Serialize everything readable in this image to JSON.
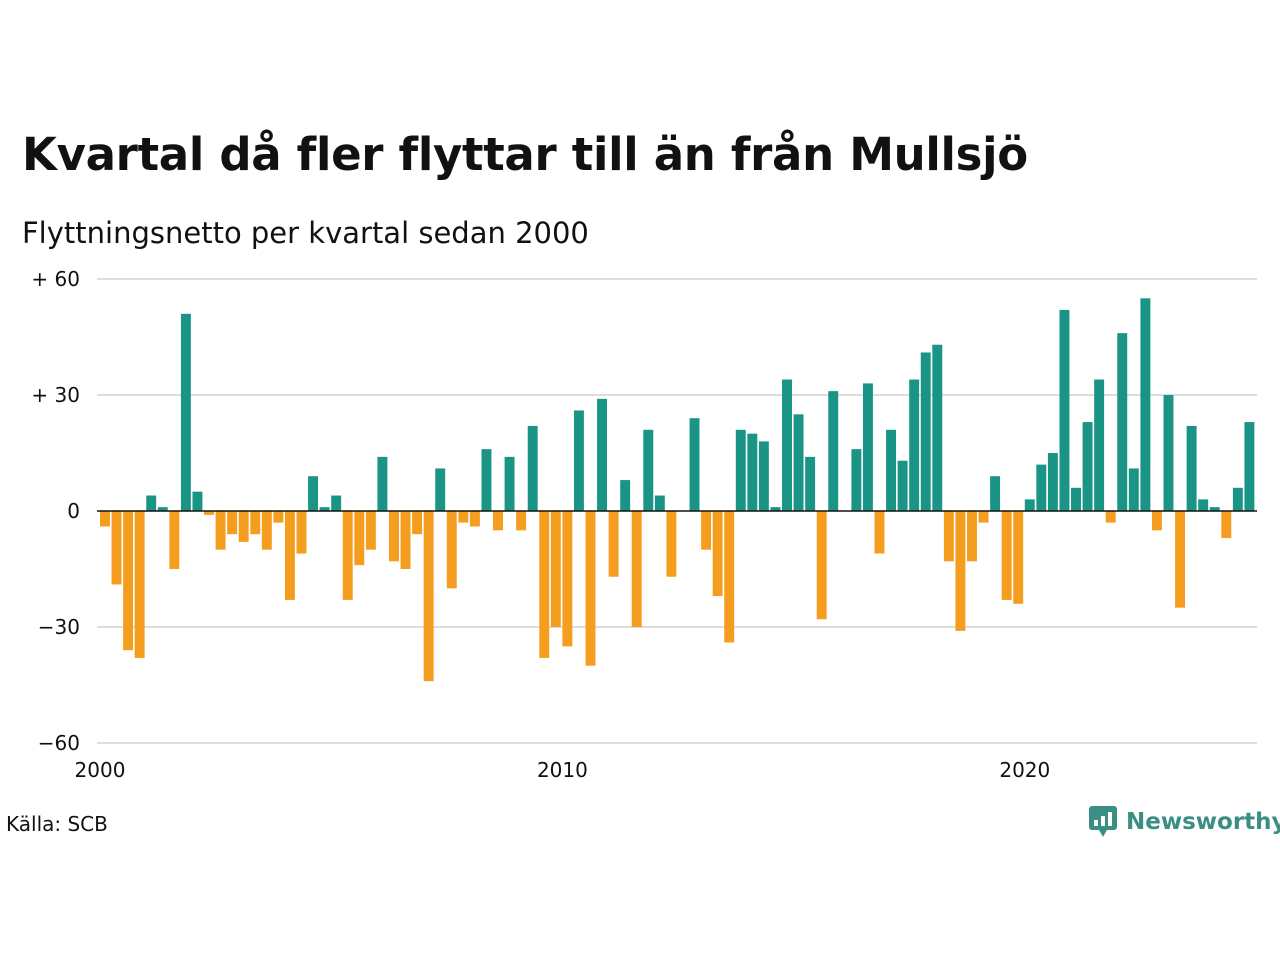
{
  "title": "Kvartal då fler flyttar till än från Mullsjö",
  "subtitle": "Flyttningsnetto per kvartal sedan 2000",
  "source": "Källa: SCB",
  "brand": {
    "name": "Newsworthy",
    "icon": "newsworthy-logo-icon"
  },
  "colors": {
    "positive": "#1a9485",
    "negative": "#f59d1e",
    "grid": "#dddddd",
    "zero_line": "#111111",
    "brand": "#3a8f84"
  },
  "chart_data": {
    "type": "bar",
    "title": "Kvartal då fler flyttar till än från Mullsjö",
    "subtitle": "Flyttningsnetto per kvartal sedan 2000",
    "xlabel": "",
    "ylabel": "",
    "ylim": [
      -60,
      60
    ],
    "grid": true,
    "legend": "none",
    "y_ticks": [
      {
        "value": 60,
        "label": "+ 60"
      },
      {
        "value": 30,
        "label": "+ 30"
      },
      {
        "value": 0,
        "label": "0"
      },
      {
        "value": -30,
        "label": "−30"
      },
      {
        "value": -60,
        "label": "−60"
      }
    ],
    "x_ticks": [
      {
        "year": 2000,
        "label": "2000"
      },
      {
        "year": 2010,
        "label": "2010"
      },
      {
        "year": 2020,
        "label": "2020"
      }
    ],
    "categories": [
      "2000 Q1",
      "2000 Q2",
      "2000 Q3",
      "2000 Q4",
      "2001 Q1",
      "2001 Q2",
      "2001 Q3",
      "2001 Q4",
      "2002 Q1",
      "2002 Q2",
      "2002 Q3",
      "2002 Q4",
      "2003 Q1",
      "2003 Q2",
      "2003 Q3",
      "2003 Q4",
      "2004 Q1",
      "2004 Q2",
      "2004 Q3",
      "2004 Q4",
      "2005 Q1",
      "2005 Q2",
      "2005 Q3",
      "2005 Q4",
      "2006 Q1",
      "2006 Q2",
      "2006 Q3",
      "2006 Q4",
      "2007 Q1",
      "2007 Q2",
      "2007 Q3",
      "2007 Q4",
      "2008 Q1",
      "2008 Q2",
      "2008 Q3",
      "2008 Q4",
      "2009 Q1",
      "2009 Q2",
      "2009 Q3",
      "2009 Q4",
      "2010 Q1",
      "2010 Q2",
      "2010 Q3",
      "2010 Q4",
      "2011 Q1",
      "2011 Q2",
      "2011 Q3",
      "2011 Q4",
      "2012 Q1",
      "2012 Q2",
      "2012 Q3",
      "2012 Q4",
      "2013 Q1",
      "2013 Q2",
      "2013 Q3",
      "2013 Q4",
      "2014 Q1",
      "2014 Q2",
      "2014 Q3",
      "2014 Q4",
      "2015 Q1",
      "2015 Q2",
      "2015 Q3",
      "2015 Q4",
      "2016 Q1",
      "2016 Q2",
      "2016 Q3",
      "2016 Q4",
      "2017 Q1",
      "2017 Q2",
      "2017 Q3",
      "2017 Q4",
      "2018 Q1",
      "2018 Q2",
      "2018 Q3",
      "2018 Q4",
      "2019 Q1",
      "2019 Q2",
      "2019 Q3",
      "2019 Q4",
      "2020 Q1",
      "2020 Q2",
      "2020 Q3",
      "2020 Q4",
      "2021 Q1",
      "2021 Q2",
      "2021 Q3",
      "2021 Q4",
      "2022 Q1",
      "2022 Q2",
      "2022 Q3",
      "2022 Q4",
      "2023 Q1",
      "2023 Q2",
      "2023 Q3",
      "2023 Q4",
      "2024 Q1",
      "2024 Q2",
      "2024 Q3",
      "2024 Q4",
      "2025 Q1",
      "2025 Q2"
    ],
    "values": [
      -4,
      -19,
      -36,
      -38,
      4,
      1,
      -15,
      51,
      5,
      -1,
      -10,
      -6,
      -8,
      -6,
      -10,
      -3,
      -23,
      -11,
      9,
      1,
      4,
      -23,
      -14,
      -10,
      14,
      -13,
      -15,
      -6,
      -44,
      11,
      -20,
      -3,
      -4,
      16,
      -5,
      14,
      -5,
      22,
      -38,
      -30,
      -35,
      26,
      -40,
      29,
      -17,
      8,
      -30,
      21,
      4,
      -17,
      0,
      24,
      -10,
      -22,
      -34,
      21,
      20,
      18,
      1,
      34,
      25,
      14,
      -28,
      31,
      0,
      16,
      33,
      -11,
      21,
      13,
      34,
      41,
      43,
      -13,
      -31,
      -13,
      -3,
      9,
      -23,
      -24,
      3,
      12,
      15,
      52,
      6,
      23,
      34,
      -3,
      46,
      11,
      55,
      -5,
      30,
      -25,
      22,
      3,
      1,
      -7,
      6,
      23,
      0,
      0
    ]
  }
}
